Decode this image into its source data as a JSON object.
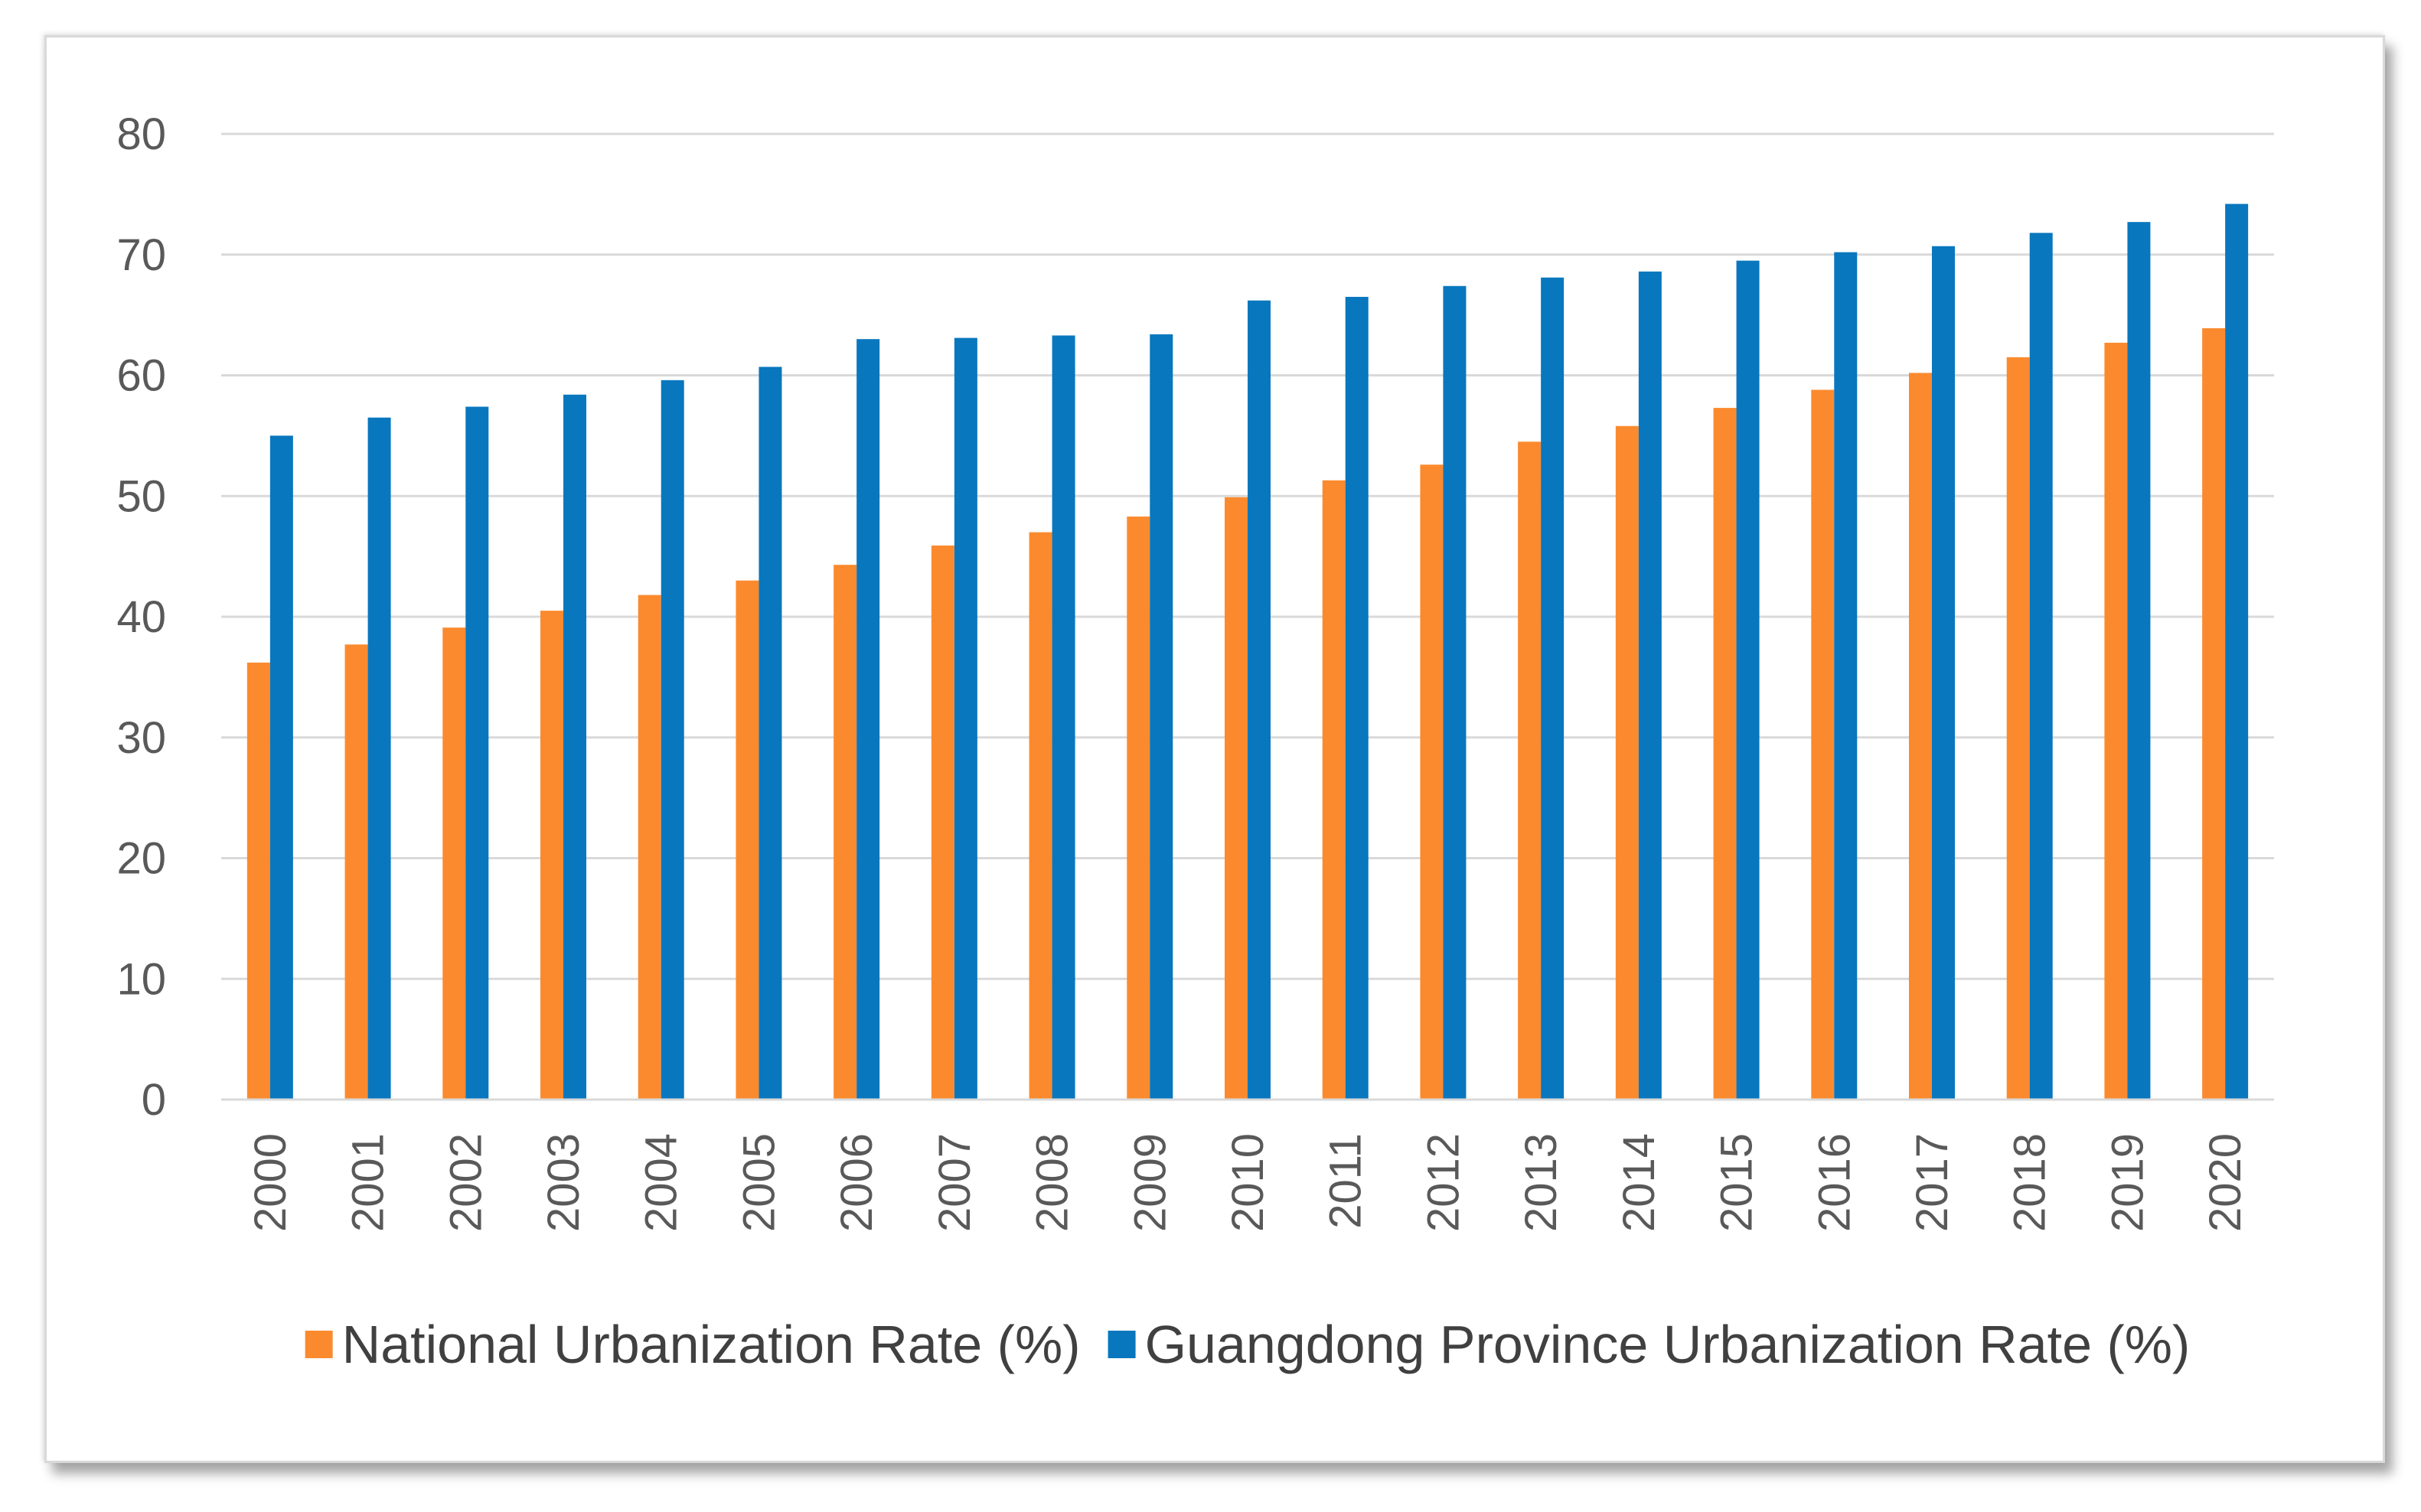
{
  "chart_data": {
    "type": "bar",
    "title": "",
    "xlabel": "",
    "ylabel": "",
    "ylim": [
      0,
      80
    ],
    "yticks": [
      0,
      10,
      20,
      30,
      40,
      50,
      60,
      70,
      80
    ],
    "grid": true,
    "legend_position": "bottom",
    "categories": [
      "2000",
      "2001",
      "2002",
      "2003",
      "2004",
      "2005",
      "2006",
      "2007",
      "2008",
      "2009",
      "2010",
      "2011",
      "2012",
      "2013",
      "2014",
      "2015",
      "2016",
      "2017",
      "2018",
      "2019",
      "2020"
    ],
    "series": [
      {
        "name": "National Urbanization Rate (%)",
        "color": "#fb8a2e",
        "values": [
          36.2,
          37.7,
          39.1,
          40.5,
          41.8,
          43.0,
          44.3,
          45.9,
          47.0,
          48.3,
          49.9,
          51.3,
          52.6,
          54.5,
          55.8,
          57.3,
          58.8,
          60.2,
          61.5,
          62.7,
          63.9
        ]
      },
      {
        "name": "Guangdong Province Urbanization Rate (%)",
        "color": "#0877be",
        "values": [
          55.0,
          56.5,
          57.4,
          58.4,
          59.6,
          60.7,
          63.0,
          63.1,
          63.3,
          63.4,
          66.2,
          66.5,
          67.4,
          68.1,
          68.6,
          69.5,
          70.2,
          70.7,
          71.8,
          72.7,
          74.2
        ]
      }
    ]
  }
}
